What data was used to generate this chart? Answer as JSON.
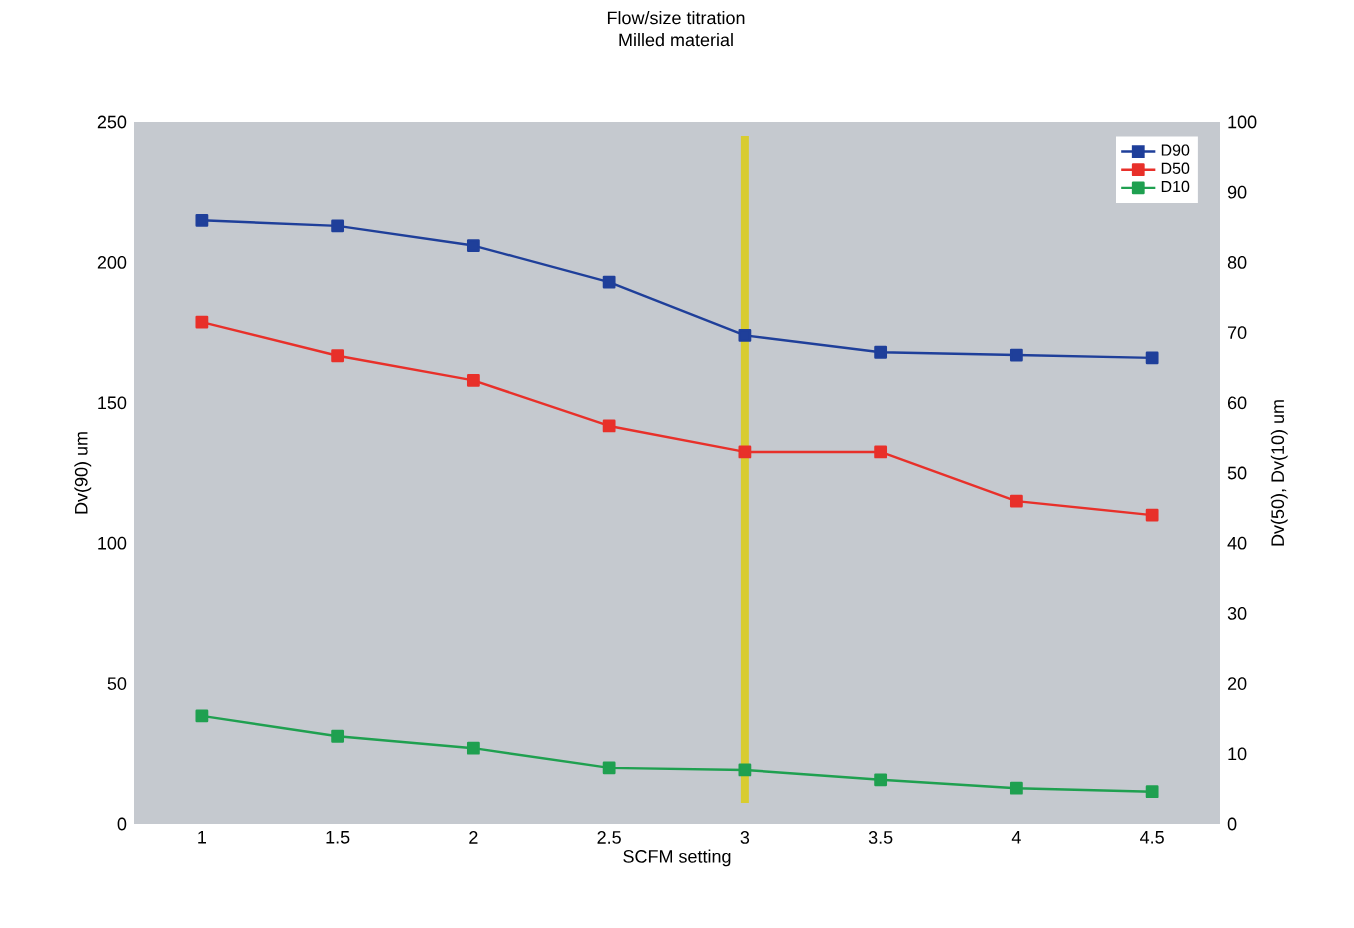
{
  "chart_data": {
    "type": "line",
    "title": "Flow/size titration",
    "subtitle": "Milled material",
    "xlabel": "SCFM setting",
    "ylabel": "Dv(90) um",
    "y2label": "Dv(50), Dv(10) um",
    "x": [
      1,
      1.5,
      2,
      2.5,
      3,
      3.5,
      4,
      4.5
    ],
    "xlim": [
      0.75,
      4.75
    ],
    "xticks": [
      1,
      1.5,
      2,
      2.5,
      3,
      3.5,
      4,
      4.5
    ],
    "ylim": [
      0,
      250
    ],
    "yticks": [
      0,
      50,
      100,
      150,
      200,
      250
    ],
    "y2lim": [
      0,
      100
    ],
    "y2ticks": [
      0,
      10,
      20,
      30,
      40,
      50,
      60,
      70,
      80,
      90,
      100
    ],
    "series": [
      {
        "name": "D90",
        "color": "#1f3f9a",
        "values": [
          215,
          213,
          206,
          193,
          174,
          168,
          167,
          166
        ]
      },
      {
        "name": "D50",
        "color": "#e8302a",
        "axis": "y2",
        "values": [
          71.5,
          66.7,
          63.2,
          56.7,
          53,
          53,
          46,
          44
        ]
      },
      {
        "name": "D10",
        "color": "#1fa050",
        "axis": "y2",
        "values": [
          15.4,
          12.5,
          10.8,
          8,
          7.7,
          6.3,
          5.1,
          4.6
        ]
      }
    ],
    "ref_lines": [
      {
        "axis": "x",
        "value": 3,
        "color": "#d8cc30"
      }
    ],
    "legend": "top right",
    "marker": "square",
    "line_style": "solid",
    "grid": false
  }
}
